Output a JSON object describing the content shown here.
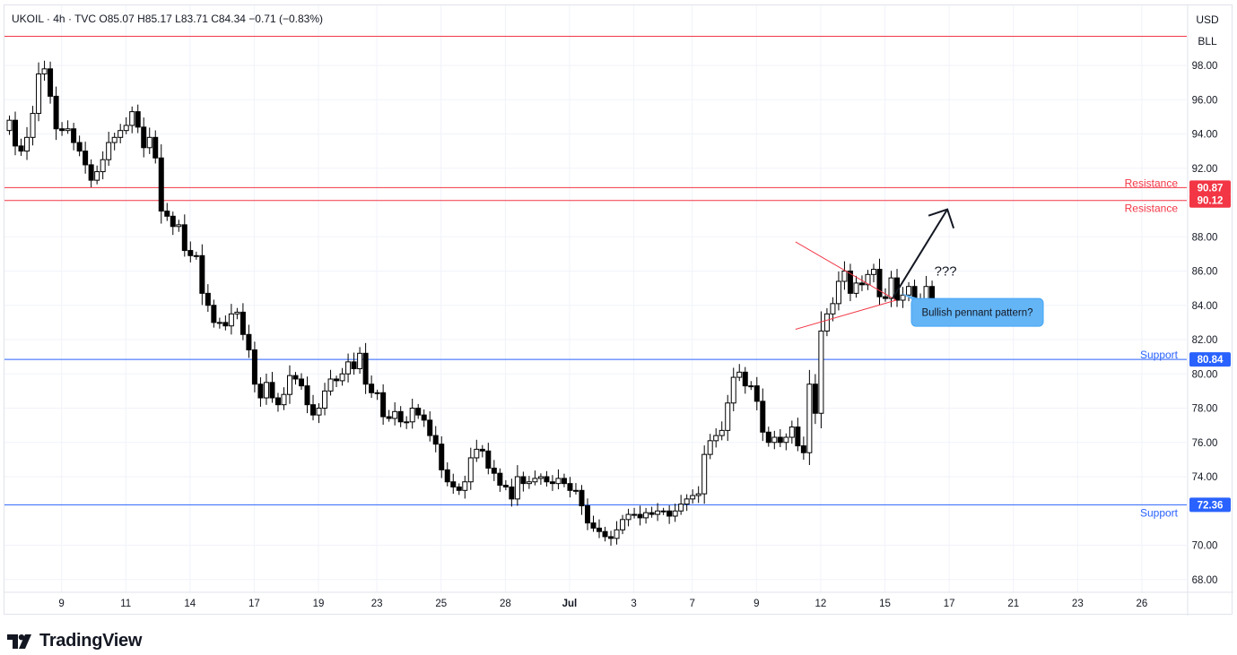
{
  "header": {
    "symbol": "UKOIL",
    "interval": "4h",
    "source": "TVC",
    "open_label": "O85.07",
    "high_label": "H85.17",
    "low_label": "L83.71",
    "close_label": "C84.34",
    "change_label": "−0.71 (−0.83%)"
  },
  "scale": {
    "currency": "USD",
    "unit": "BLL"
  },
  "brand": {
    "name": "TradingView"
  },
  "colors": {
    "resistance": "#f23645",
    "support": "#2962ff",
    "callout": "#64b5f6",
    "candle": "#000000",
    "grid": "#f0f3fa"
  },
  "chart_data": {
    "type": "candlestick",
    "title": "UKOIL · 4h · TVC",
    "ylim": [
      66.8,
      101.2
    ],
    "y_ticks": [
      "98.00",
      "96.00",
      "94.00",
      "92.00",
      "88.00",
      "86.00",
      "84.00",
      "82.00",
      "80.00",
      "78.00",
      "76.00",
      "74.00",
      "70.00",
      "68.00"
    ],
    "x_ticks": [
      "9",
      "11",
      "14",
      "17",
      "19",
      "23",
      "25",
      "28",
      "Jul",
      "3",
      "7",
      "9",
      "12",
      "15",
      "17",
      "21",
      "23",
      "26"
    ],
    "price_levels": [
      {
        "id": "res-upper",
        "value": 90.87,
        "label": "Resistance",
        "color": "#f23645"
      },
      {
        "id": "res-lower",
        "value": 90.12,
        "label": "Resistance",
        "color": "#f23645"
      },
      {
        "id": "sup-upper",
        "value": 80.84,
        "label": "Support",
        "color": "#2962ff"
      },
      {
        "id": "sup-lower",
        "value": 72.36,
        "label": "Support",
        "color": "#2962ff"
      }
    ],
    "top_line": 99.7,
    "annotations": {
      "question": "???",
      "callout": "Bullish pennant pattern?"
    },
    "pennant": {
      "start_bar": 135,
      "end_bar": 151,
      "upper": [
        87.7,
        84.3
      ],
      "lower": [
        82.6,
        84.3
      ]
    },
    "arrow": {
      "from": [
        151,
        84.4
      ],
      "to": [
        161,
        89.6
      ]
    },
    "closes": [
      94.8,
      93.3,
      93.0,
      93.8,
      95.2,
      97.5,
      97.8,
      96.2,
      94.3,
      94.2,
      94.3,
      93.5,
      93.0,
      92.2,
      91.3,
      91.8,
      92.5,
      93.5,
      93.8,
      94.2,
      94.5,
      95.3,
      94.4,
      93.2,
      93.8,
      92.6,
      89.5,
      89.2,
      88.6,
      88.7,
      87.2,
      86.9,
      86.9,
      84.7,
      84.0,
      83.0,
      83.0,
      82.8,
      83.5,
      83.6,
      82.3,
      81.4,
      79.4,
      78.6,
      79.5,
      78.6,
      78.2,
      78.8,
      79.9,
      79.7,
      79.3,
      78.2,
      77.6,
      78.0,
      79.0,
      79.7,
      79.6,
      80.0,
      80.7,
      80.3,
      81.2,
      79.4,
      78.9,
      78.9,
      77.5,
      77.4,
      77.8,
      77.2,
      77.2,
      78.0,
      77.6,
      77.3,
      76.4,
      75.9,
      74.4,
      73.7,
      73.4,
      73.2,
      73.7,
      75.1,
      75.6,
      75.5,
      74.5,
      74.2,
      73.5,
      73.4,
      72.7,
      74.0,
      73.6,
      73.7,
      73.9,
      74.0,
      73.7,
      73.6,
      73.9,
      73.6,
      73.2,
      73.2,
      72.3,
      71.3,
      71.0,
      70.8,
      70.5,
      70.4,
      70.9,
      71.5,
      71.8,
      71.8,
      71.6,
      71.9,
      71.8,
      72.0,
      72.0,
      71.7,
      72.0,
      72.4,
      72.7,
      72.9,
      73.0,
      75.3,
      76.1,
      76.4,
      76.7,
      78.3,
      79.8,
      80.1,
      79.3,
      79.3,
      78.4,
      76.6,
      76.0,
      76.3,
      76.0,
      76.3,
      76.9,
      75.8,
      75.4,
      79.4,
      77.7,
      82.5,
      83.5,
      84.1,
      85.4,
      86.0,
      84.7,
      85.3,
      85.2,
      85.8,
      86.1,
      84.5,
      84.4,
      85.6,
      84.3,
      84.6,
      85.1,
      84.3,
      84.2,
      85.1,
      84.34
    ]
  }
}
